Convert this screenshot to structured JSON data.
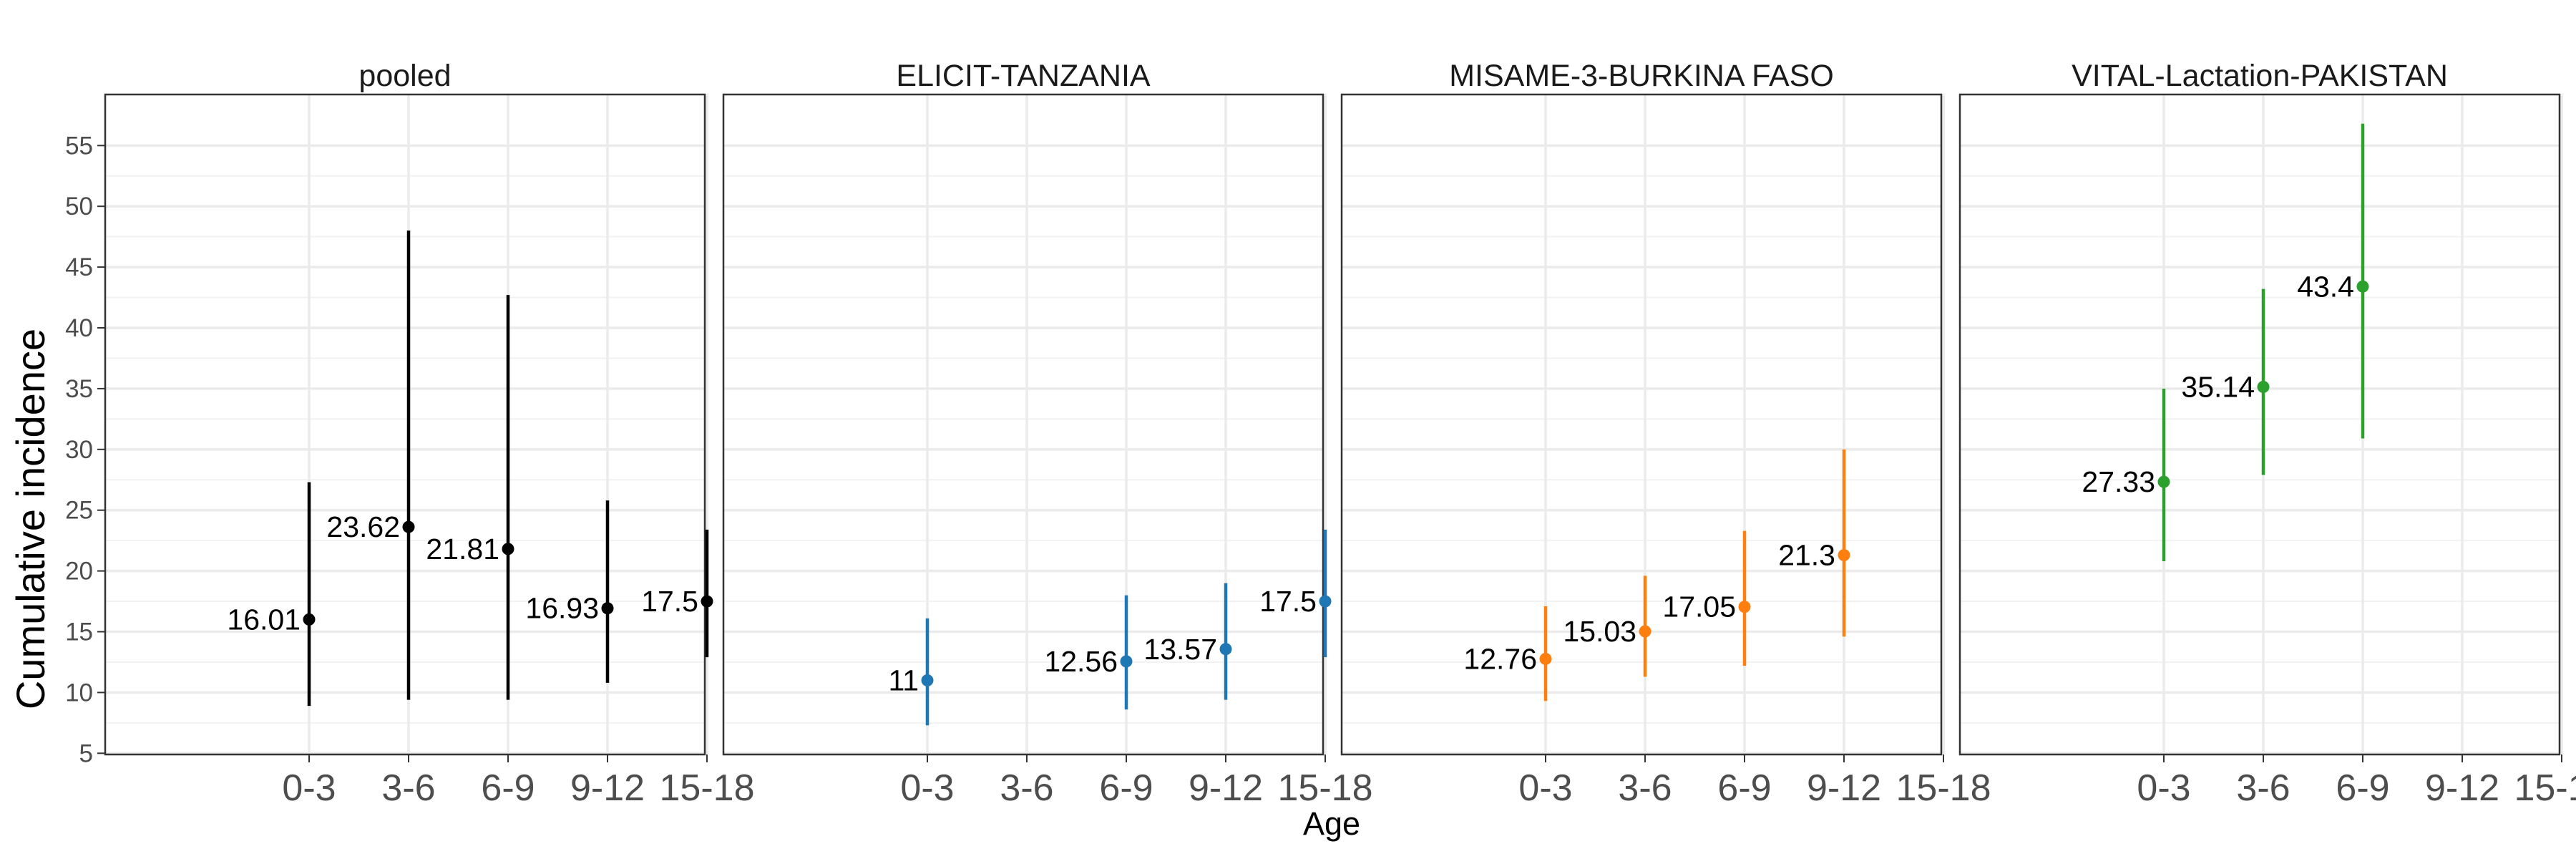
{
  "chart_data": {
    "type": "scatter",
    "variant": "point-range-faceted",
    "ylabel": "Cumulative incidence",
    "xlabel": "Age",
    "categories": [
      "0-3",
      "3-6",
      "6-9",
      "9-12",
      "15-18"
    ],
    "y_ticks": [
      5,
      10,
      15,
      20,
      25,
      30,
      35,
      40,
      45,
      50,
      55
    ],
    "ylim": [
      4.9,
      59.2
    ],
    "grid": true,
    "legend": "none",
    "panels": [
      {
        "title": "pooled",
        "color": "#000000",
        "points": [
          {
            "x": "0-3",
            "y": 16.01,
            "lower": 8.9,
            "upper": 27.3,
            "label": "16.01"
          },
          {
            "x": "3-6",
            "y": 23.62,
            "lower": 9.4,
            "upper": 48.0,
            "label": "23.62"
          },
          {
            "x": "6-9",
            "y": 21.81,
            "lower": 9.4,
            "upper": 42.7,
            "label": "21.81"
          },
          {
            "x": "9-12",
            "y": 16.93,
            "lower": 10.8,
            "upper": 25.8,
            "label": "16.93"
          },
          {
            "x": "15-18",
            "y": 17.5,
            "lower": 12.9,
            "upper": 23.4,
            "label": "17.5"
          }
        ]
      },
      {
        "title": "ELICIT-TANZANIA",
        "color": "#1f77b4",
        "points": [
          {
            "x": "0-3",
            "y": 11,
            "lower": 7.3,
            "upper": 16.1,
            "label": "11"
          },
          {
            "x": "6-9",
            "y": 12.56,
            "lower": 8.6,
            "upper": 18.0,
            "label": "12.56"
          },
          {
            "x": "9-12",
            "y": 13.57,
            "lower": 9.4,
            "upper": 19.0,
            "label": "13.57"
          },
          {
            "x": "15-18",
            "y": 17.5,
            "lower": 12.9,
            "upper": 23.4,
            "label": "17.5"
          }
        ]
      },
      {
        "title": "MISAME-3-BURKINA FASO",
        "color": "#ff7f0e",
        "points": [
          {
            "x": "0-3",
            "y": 12.76,
            "lower": 9.3,
            "upper": 17.1,
            "label": "12.76"
          },
          {
            "x": "3-6",
            "y": 15.03,
            "lower": 11.3,
            "upper": 19.6,
            "label": "15.03"
          },
          {
            "x": "6-9",
            "y": 17.05,
            "lower": 12.2,
            "upper": 23.3,
            "label": "17.05"
          },
          {
            "x": "9-12",
            "y": 21.3,
            "lower": 14.6,
            "upper": 30.0,
            "label": "21.3"
          }
        ]
      },
      {
        "title": "VITAL-Lactation-PAKISTAN",
        "color": "#2ca02c",
        "points": [
          {
            "x": "0-3",
            "y": 27.33,
            "lower": 20.8,
            "upper": 35.0,
            "label": "27.33"
          },
          {
            "x": "3-6",
            "y": 35.14,
            "lower": 27.9,
            "upper": 43.2,
            "label": "35.14"
          },
          {
            "x": "6-9",
            "y": 43.4,
            "lower": 30.9,
            "upper": 56.8,
            "label": "43.4"
          }
        ]
      }
    ]
  }
}
